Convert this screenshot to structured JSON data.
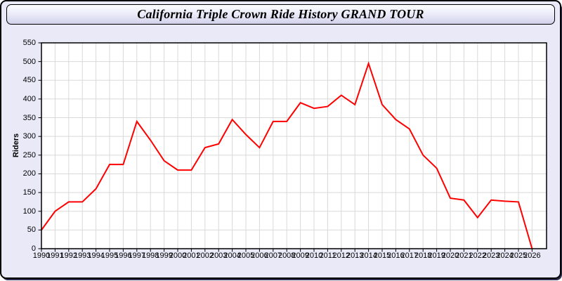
{
  "window": {
    "title": "California Triple Crown Ride History GRAND TOUR"
  },
  "colors": {
    "panel_bg": "#e9e9f8",
    "plot_bg": "#ffffff",
    "grid_color": "#d9d9d9",
    "axis_color": "#000000",
    "line_color": "#ff0000"
  },
  "chart_data": {
    "type": "line",
    "title": "California Triple Crown Ride History GRAND TOUR",
    "xlabel": "",
    "ylabel": "Riders",
    "ylim": [
      0,
      550
    ],
    "y_tick_step": 50,
    "grid": true,
    "legend_position": "none",
    "x": [
      1990,
      1991,
      1992,
      1993,
      1994,
      1995,
      1996,
      1997,
      1998,
      1999,
      2000,
      2001,
      2002,
      2003,
      2004,
      2005,
      2006,
      2007,
      2008,
      2009,
      2010,
      2011,
      2012,
      2013,
      2014,
      2015,
      2016,
      2017,
      2018,
      2019,
      2020,
      2021,
      2022,
      2023,
      2024,
      2025,
      2026
    ],
    "series": [
      {
        "name": "Riders",
        "color": "#ff0000",
        "values": [
          50,
          100,
          125,
          125,
          160,
          225,
          225,
          340,
          290,
          235,
          210,
          210,
          270,
          280,
          345,
          305,
          270,
          340,
          340,
          390,
          375,
          380,
          410,
          385,
          495,
          385,
          345,
          320,
          250,
          215,
          135,
          130,
          83,
          130,
          127,
          125,
          0
        ]
      }
    ]
  }
}
